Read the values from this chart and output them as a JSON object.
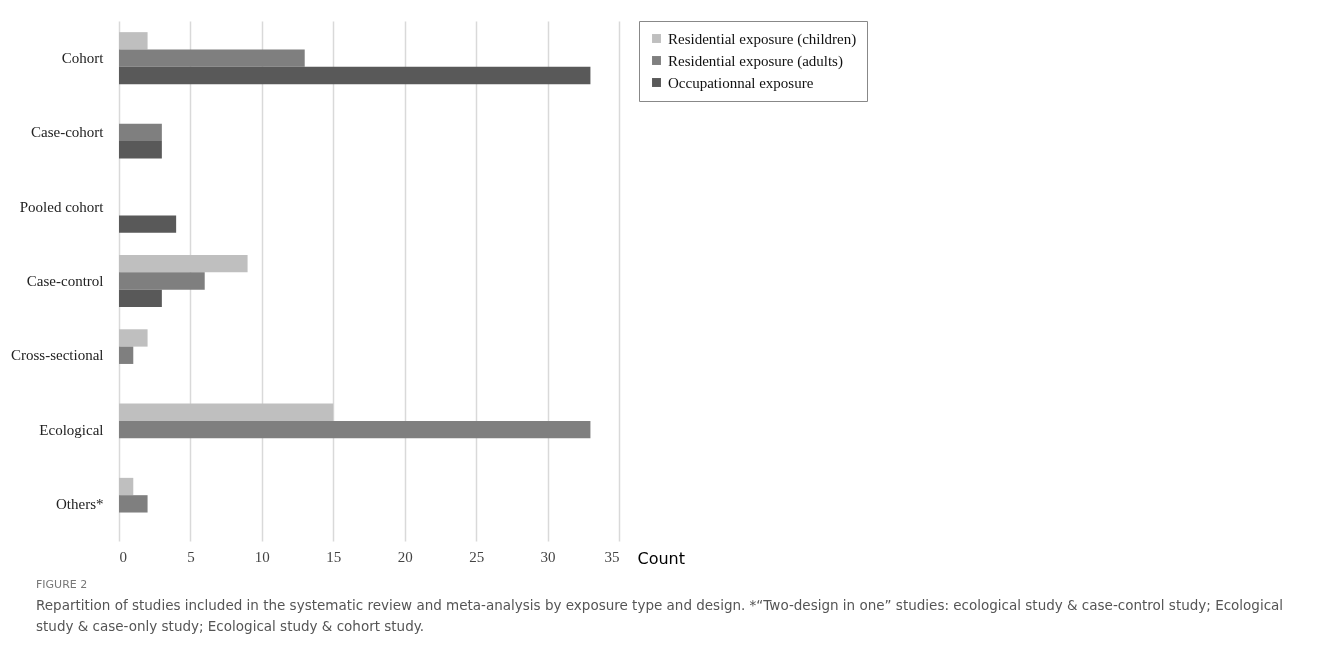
{
  "chart_data": {
    "type": "bar",
    "orientation": "horizontal",
    "title": "FIGURE 2",
    "xlabel": "Count",
    "categories": [
      "Cohort",
      "Case-cohort",
      "Pooled cohort",
      "Case-control",
      "Cross-sectional",
      "Ecological",
      "Others*"
    ],
    "series": [
      {
        "name": "Residential exposure (children)",
        "color": "#bfbfbf",
        "values": [
          2,
          null,
          null,
          9,
          2,
          15,
          1
        ]
      },
      {
        "name": "Residential exposure (adults)",
        "color": "#7f7f7f",
        "values": [
          13,
          3,
          null,
          6,
          1,
          33,
          2
        ]
      },
      {
        "name": "Occupationnal exposure",
        "color": "#595959",
        "values": [
          33,
          3,
          4,
          3,
          null,
          null,
          null
        ]
      }
    ],
    "xlim": [
      0,
      35
    ],
    "xticks": [
      0,
      5,
      10,
      15,
      20,
      25,
      30,
      35
    ],
    "grid": "x",
    "legend": "right",
    "annotations": [
      "Repartition of studies included in the systematic review and meta-analysis by exposure type and design. *“Two-design in one” studies: ecological study & case-control study; Ecological study & case-only study; Ecological study & cohort study."
    ]
  }
}
